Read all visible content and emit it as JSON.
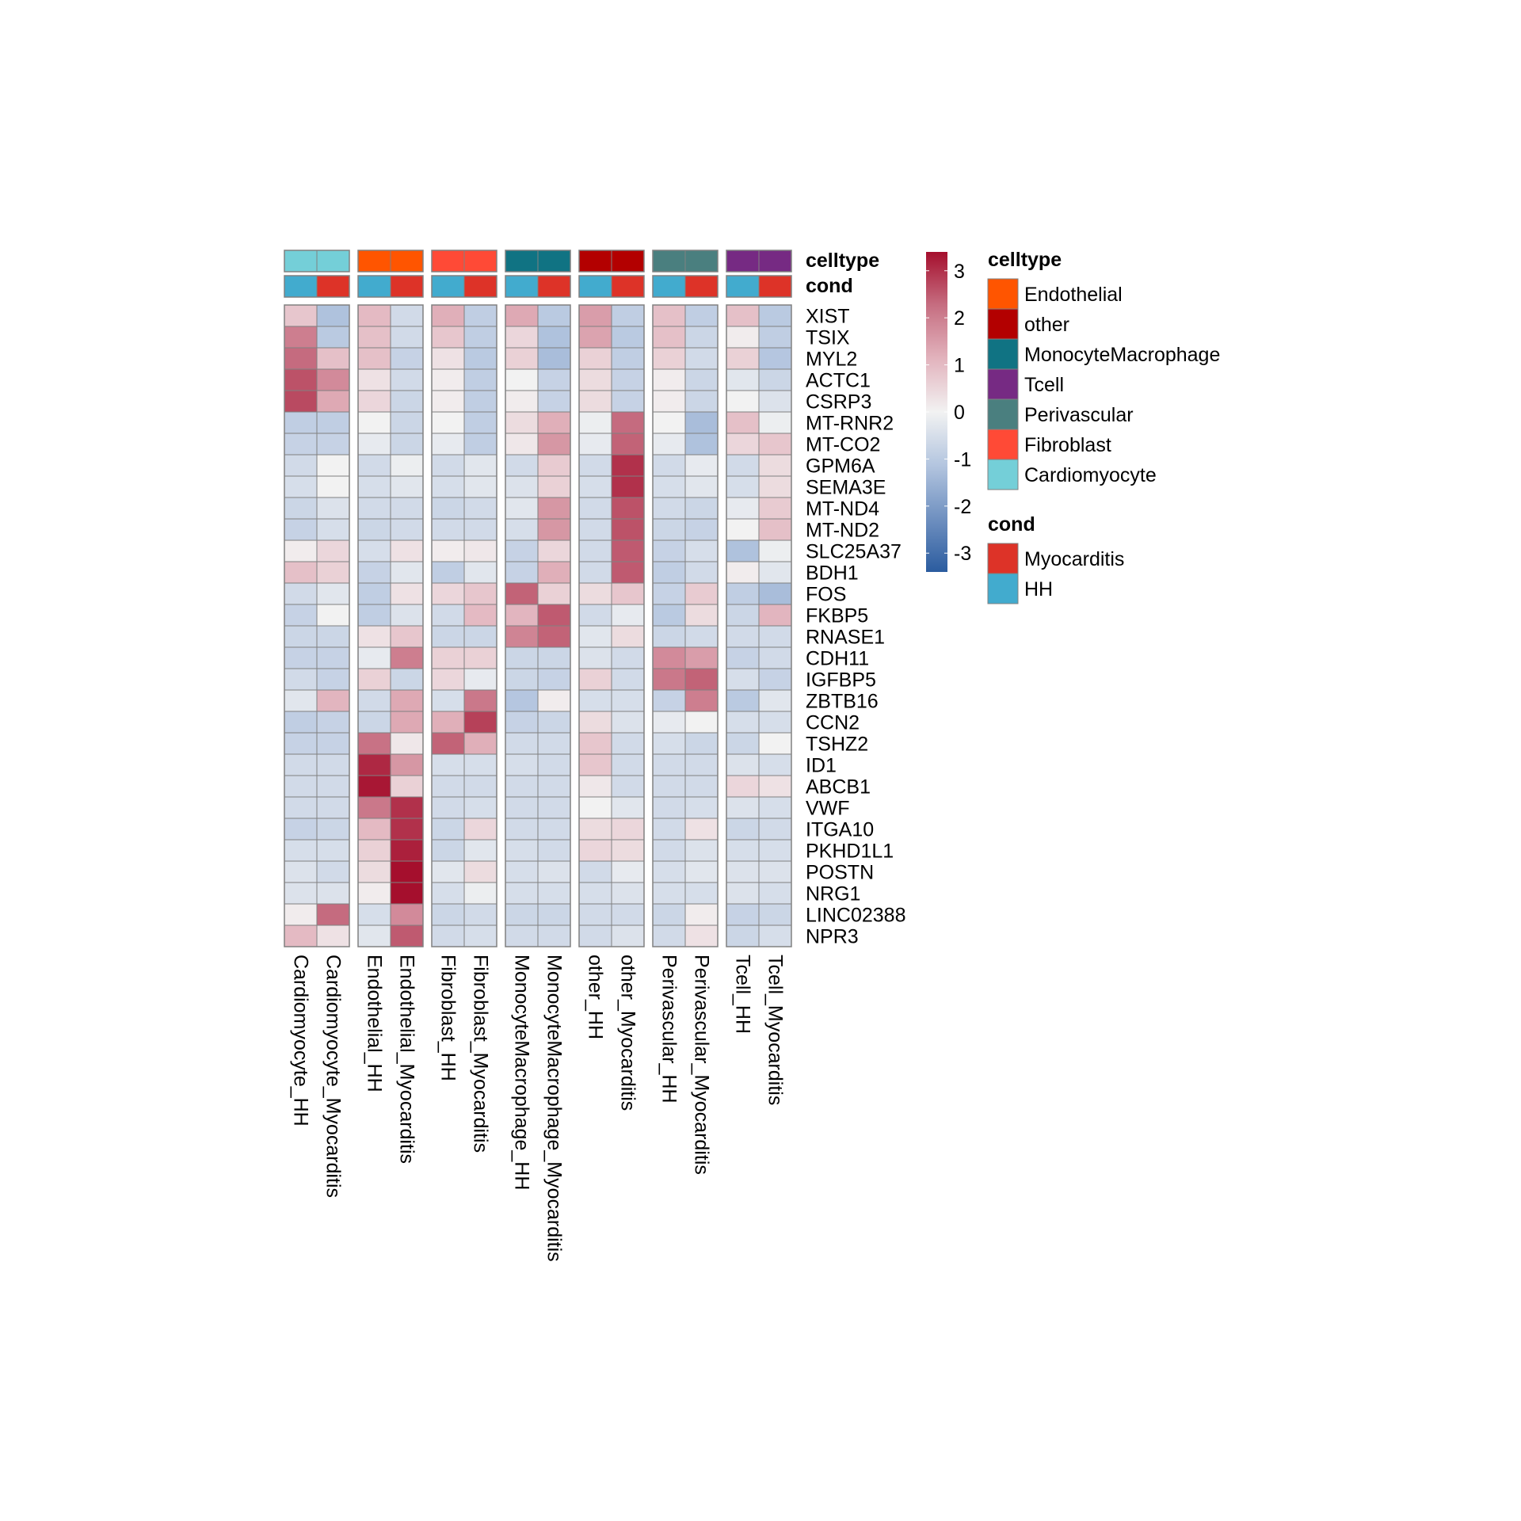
{
  "chart_data": {
    "type": "heatmap",
    "title": "",
    "annotation_rows": [
      {
        "name": "celltype",
        "label": "celltype"
      },
      {
        "name": "cond",
        "label": "cond"
      }
    ],
    "columns": [
      {
        "label": "Cardiomyocyte_HH",
        "celltype": "Cardiomyocyte",
        "cond": "HH"
      },
      {
        "label": "Cardiomyocyte_Myocarditis",
        "celltype": "Cardiomyocyte",
        "cond": "Myocarditis"
      },
      {
        "label": "Endothelial_HH",
        "celltype": "Endothelial",
        "cond": "HH"
      },
      {
        "label": "Endothelial_Myocarditis",
        "celltype": "Endothelial",
        "cond": "Myocarditis"
      },
      {
        "label": "Fibroblast_HH",
        "celltype": "Fibroblast",
        "cond": "HH"
      },
      {
        "label": "Fibroblast_Myocarditis",
        "celltype": "Fibroblast",
        "cond": "Myocarditis"
      },
      {
        "label": "MonocyteMacrophage_HH",
        "celltype": "MonocyteMacrophage",
        "cond": "HH"
      },
      {
        "label": "MonocyteMacrophage_Myocarditis",
        "celltype": "MonocyteMacrophage",
        "cond": "Myocarditis"
      },
      {
        "label": "other_HH",
        "celltype": "other",
        "cond": "HH"
      },
      {
        "label": "other_Myocarditis",
        "celltype": "other",
        "cond": "Myocarditis"
      },
      {
        "label": "Perivascular_HH",
        "celltype": "Perivascular",
        "cond": "HH"
      },
      {
        "label": "Perivascular_Myocarditis",
        "celltype": "Perivascular",
        "cond": "Myocarditis"
      },
      {
        "label": "Tcell_HH",
        "celltype": "Tcell",
        "cond": "HH"
      },
      {
        "label": "Tcell_Myocarditis",
        "celltype": "Tcell",
        "cond": "Myocarditis"
      }
    ],
    "column_groups": [
      "Cardiomyocyte",
      "Endothelial",
      "Fibroblast",
      "MonocyteMacrophage",
      "other",
      "Perivascular",
      "Tcell"
    ],
    "rows": [
      "XIST",
      "TSIX",
      "MYL2",
      "ACTC1",
      "CSRP3",
      "MT-RNR2",
      "MT-CO2",
      "GPM6A",
      "SEMA3E",
      "MT-ND4",
      "MT-ND2",
      "SLC25A37",
      "BDH1",
      "FOS",
      "FKBP5",
      "RNASE1",
      "CDH11",
      "IGFBP5",
      "ZBTB16",
      "CCN2",
      "TSHZ2",
      "ID1",
      "ABCB1",
      "VWF",
      "ITGA10",
      "PKHD1L1",
      "POSTN",
      "NRG1",
      "LINC02388",
      "NPR3"
    ],
    "values": [
      [
        0.8,
        -1.2,
        1.0,
        -0.6,
        1.2,
        -0.9,
        1.3,
        -1.0,
        1.5,
        -0.9,
        0.9,
        -0.9,
        0.9,
        -1.0
      ],
      [
        2.0,
        -1.0,
        0.9,
        -0.6,
        0.8,
        -0.9,
        0.5,
        -1.2,
        1.4,
        -1.0,
        0.9,
        -0.7,
        0.1,
        -0.9
      ],
      [
        2.3,
        0.9,
        0.9,
        -0.8,
        0.3,
        -1.0,
        0.6,
        -1.3,
        0.6,
        -0.9,
        0.6,
        -0.6,
        0.6,
        -1.1
      ],
      [
        2.6,
        1.8,
        0.3,
        -0.6,
        0.1,
        -0.9,
        0.0,
        -0.8,
        0.4,
        -0.8,
        0.1,
        -0.7,
        -0.3,
        -0.7
      ],
      [
        2.7,
        1.3,
        0.5,
        -0.7,
        0.1,
        -0.9,
        0.1,
        -0.8,
        0.4,
        -0.8,
        0.1,
        -0.7,
        0.0,
        -0.4
      ],
      [
        -0.9,
        -0.9,
        0.0,
        -0.7,
        0.0,
        -0.9,
        0.4,
        1.2,
        -0.1,
        2.3,
        0.0,
        -1.3,
        0.9,
        -0.1
      ],
      [
        -0.8,
        -0.8,
        -0.2,
        -0.7,
        -0.2,
        -0.9,
        0.2,
        1.6,
        -0.2,
        2.4,
        -0.2,
        -1.2,
        0.5,
        0.8
      ],
      [
        -0.6,
        0.0,
        -0.6,
        -0.1,
        -0.6,
        -0.3,
        -0.6,
        0.7,
        -0.6,
        3.0,
        -0.6,
        -0.2,
        -0.6,
        0.4
      ],
      [
        -0.5,
        0.0,
        -0.5,
        -0.3,
        -0.5,
        -0.3,
        -0.4,
        0.6,
        -0.5,
        3.0,
        -0.5,
        -0.3,
        -0.5,
        0.4
      ],
      [
        -0.7,
        -0.4,
        -0.6,
        -0.6,
        -0.7,
        -0.6,
        -0.3,
        1.6,
        -0.6,
        2.6,
        -0.6,
        -0.7,
        -0.2,
        0.7
      ],
      [
        -0.8,
        -0.5,
        -0.7,
        -0.6,
        -0.6,
        -0.6,
        -0.5,
        1.6,
        -0.6,
        2.6,
        -0.7,
        -0.8,
        0.0,
        0.9
      ],
      [
        0.1,
        0.5,
        -0.5,
        0.3,
        0.1,
        0.2,
        -0.8,
        0.5,
        -0.6,
        2.5,
        -0.8,
        -0.5,
        -1.2,
        -0.1
      ],
      [
        0.9,
        0.6,
        -0.8,
        -0.3,
        -0.9,
        -0.3,
        -0.8,
        1.2,
        -0.6,
        2.5,
        -0.9,
        -0.6,
        0.1,
        -0.3
      ],
      [
        -0.6,
        -0.3,
        -0.9,
        0.3,
        0.5,
        0.8,
        2.4,
        0.6,
        0.4,
        0.8,
        -0.8,
        0.7,
        -0.9,
        -1.3
      ],
      [
        -0.8,
        0.0,
        -0.9,
        -0.4,
        -0.6,
        1.0,
        1.1,
        2.5,
        -0.6,
        -0.2,
        -1.0,
        0.4,
        -0.7,
        1.1
      ],
      [
        -0.7,
        -0.7,
        0.3,
        0.8,
        -0.7,
        -0.7,
        1.9,
        2.4,
        -0.3,
        0.4,
        -0.7,
        -0.6,
        -0.6,
        -0.6
      ],
      [
        -0.8,
        -0.8,
        -0.2,
        2.0,
        0.6,
        0.6,
        -0.7,
        -0.7,
        -0.4,
        -0.6,
        1.8,
        1.5,
        -0.8,
        -0.6
      ],
      [
        -0.6,
        -0.8,
        0.6,
        -0.7,
        0.5,
        -0.2,
        -0.7,
        -0.8,
        0.6,
        -0.6,
        2.1,
        2.4,
        -0.5,
        -0.8
      ],
      [
        -0.3,
        1.1,
        -0.6,
        1.3,
        -0.5,
        2.1,
        -1.1,
        0.1,
        -0.5,
        -0.5,
        -0.8,
        2.0,
        -1.0,
        -0.3
      ],
      [
        -0.9,
        -0.8,
        -0.7,
        1.3,
        1.2,
        2.8,
        -0.8,
        -0.7,
        0.4,
        -0.4,
        -0.2,
        0.0,
        -0.5,
        -0.5
      ],
      [
        -0.8,
        -0.8,
        2.2,
        0.2,
        2.4,
        1.2,
        -0.6,
        -0.6,
        0.8,
        -0.6,
        -0.5,
        -0.7,
        -0.7,
        0.0
      ],
      [
        -0.6,
        -0.6,
        3.1,
        1.6,
        -0.5,
        -0.5,
        -0.5,
        -0.6,
        0.8,
        -0.6,
        -0.6,
        -0.6,
        -0.4,
        -0.5
      ],
      [
        -0.6,
        -0.6,
        3.3,
        0.6,
        -0.6,
        -0.6,
        -0.6,
        -0.6,
        0.2,
        -0.6,
        -0.6,
        -0.6,
        0.5,
        0.3
      ],
      [
        -0.6,
        -0.6,
        2.1,
        3.0,
        -0.6,
        -0.5,
        -0.6,
        -0.6,
        0.0,
        -0.3,
        -0.6,
        -0.5,
        -0.4,
        -0.5
      ],
      [
        -0.8,
        -0.7,
        1.0,
        3.0,
        -0.7,
        0.5,
        -0.6,
        -0.6,
        0.4,
        0.5,
        -0.6,
        0.3,
        -0.7,
        -0.6
      ],
      [
        -0.5,
        -0.5,
        0.6,
        3.2,
        -0.7,
        -0.3,
        -0.5,
        -0.6,
        0.5,
        0.4,
        -0.6,
        -0.4,
        -0.5,
        -0.5
      ],
      [
        -0.4,
        -0.6,
        0.4,
        3.4,
        -0.3,
        0.4,
        -0.5,
        -0.4,
        -0.6,
        -0.2,
        -0.5,
        -0.3,
        -0.4,
        -0.4
      ],
      [
        -0.4,
        -0.4,
        0.1,
        3.4,
        -0.5,
        -0.1,
        -0.5,
        -0.5,
        -0.5,
        -0.4,
        -0.5,
        -0.5,
        -0.4,
        -0.5
      ],
      [
        0.1,
        2.3,
        -0.5,
        1.8,
        -0.7,
        -0.6,
        -0.7,
        -0.7,
        -0.6,
        -0.6,
        -0.7,
        0.1,
        -0.8,
        -0.7
      ],
      [
        1.0,
        0.3,
        -0.3,
        2.5,
        -0.6,
        -0.5,
        -0.6,
        -0.6,
        -0.6,
        -0.4,
        -0.6,
        0.3,
        -0.7,
        -0.5
      ]
    ],
    "color_scale": {
      "min": -3.4,
      "max": 3.4,
      "stops": [
        "#2166ac",
        "#4393c3",
        "#92c5de",
        "#d1e5f0",
        "#f7f7f7",
        "#fddbc7",
        "#f4a582",
        "#d6604d",
        "#b2182b"
      ],
      "display_stops": [
        "#2b5c9f",
        "#6f90c0",
        "#b3c5df",
        "#f2f2f2",
        "#e2b3bd",
        "#c66e81",
        "#a50f2d"
      ],
      "ticks": [
        3,
        2,
        1,
        0,
        -1,
        -2,
        -3
      ],
      "tick_labels": [
        "3",
        "2",
        "1",
        "0",
        "-1",
        "-2",
        "-3"
      ]
    },
    "legend": {
      "celltype": {
        "title": "celltype",
        "items": [
          {
            "label": "Endothelial",
            "color": "#ff5500"
          },
          {
            "label": "other",
            "color": "#b30000"
          },
          {
            "label": "MonocyteMacrophage",
            "color": "#107383"
          },
          {
            "label": "Tcell",
            "color": "#762a83"
          },
          {
            "label": "Perivascular",
            "color": "#4a7f7f"
          },
          {
            "label": "Fibroblast",
            "color": "#ff4a36"
          },
          {
            "label": "Cardiomyocyte",
            "color": "#74cfd8"
          }
        ]
      },
      "cond": {
        "title": "cond",
        "items": [
          {
            "label": "Myocarditis",
            "color": "#dd3328"
          },
          {
            "label": "HH",
            "color": "#42abce"
          }
        ]
      }
    },
    "cell_border_color": "#808080",
    "grid": true
  }
}
